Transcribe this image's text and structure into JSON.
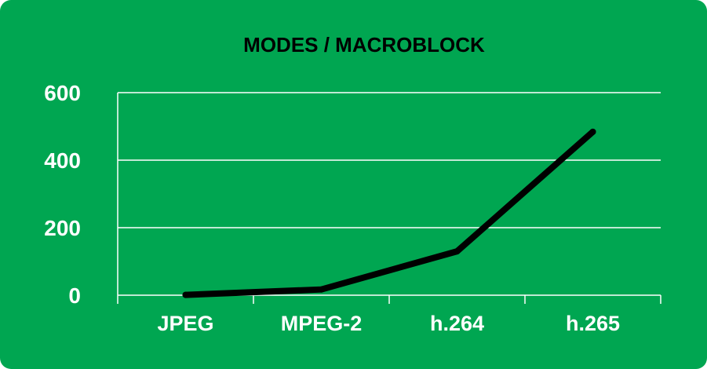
{
  "colors": {
    "background": "#00a651",
    "line": "#000000",
    "grid": "#ffffff",
    "title": "#000000",
    "tick_label": "#ffffff"
  },
  "chart_data": {
    "type": "line",
    "title": "MODES / MACROBLOCK",
    "xlabel": "",
    "ylabel": "",
    "categories": [
      "JPEG",
      "MPEG-2",
      "h.264",
      "h.265"
    ],
    "series": [
      {
        "values": [
          1,
          17,
          130,
          484
        ]
      }
    ],
    "ylim": [
      0,
      600
    ],
    "yticks": [
      "0",
      "200",
      "400",
      "600"
    ],
    "grid": "horizontal",
    "legend": "none"
  }
}
